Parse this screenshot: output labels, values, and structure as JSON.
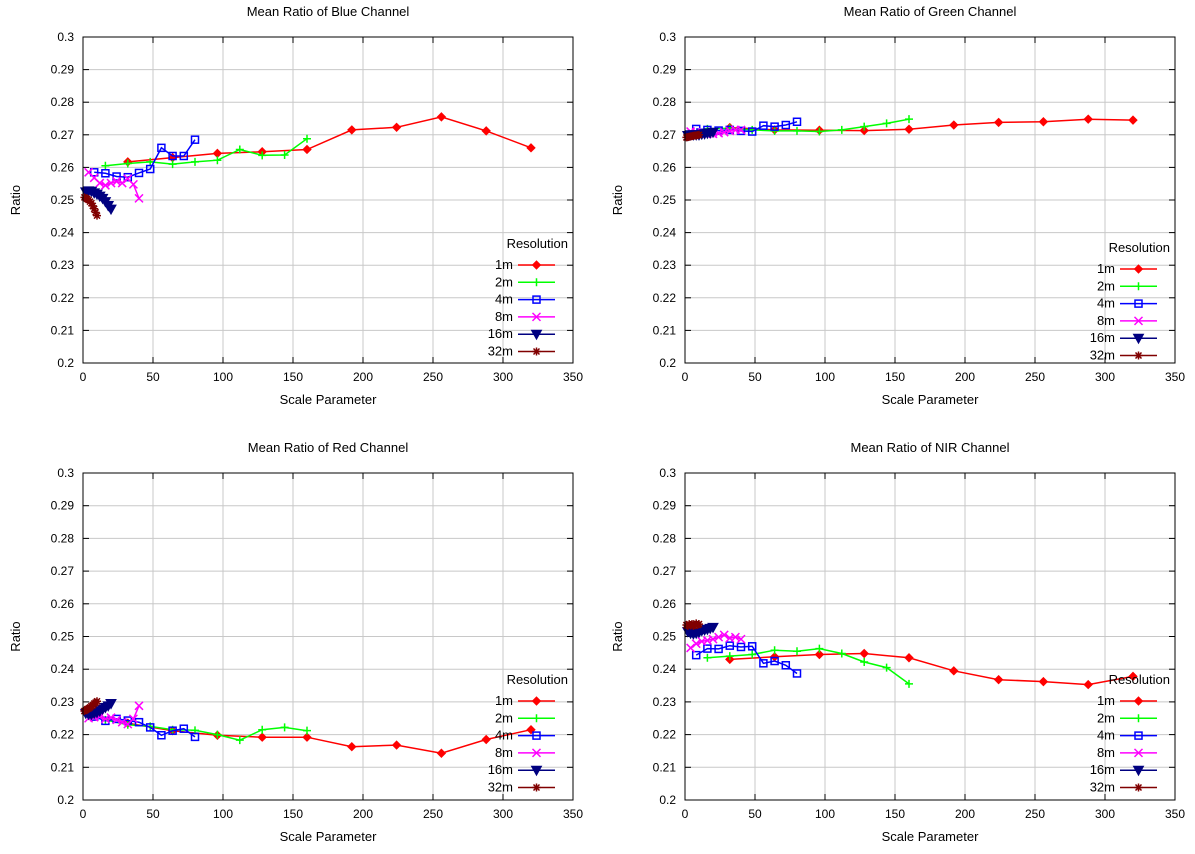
{
  "legend": {
    "title": "Resolution",
    "entries": [
      {
        "label": "1m",
        "color": "#ff0000",
        "marker": "diamond"
      },
      {
        "label": "2m",
        "color": "#00ff00",
        "marker": "plus"
      },
      {
        "label": "4m",
        "color": "#0000ff",
        "marker": "square"
      },
      {
        "label": "8m",
        "color": "#ff00ff",
        "marker": "cross"
      },
      {
        "label": "16m",
        "color": "#000080",
        "marker": "triangle-down"
      },
      {
        "label": "32m",
        "color": "#800000",
        "marker": "star"
      }
    ]
  },
  "chart_data": [
    {
      "type": "line",
      "title": "Mean Ratio of Blue Channel",
      "xlabel": "Scale Parameter",
      "ylabel": "Ratio",
      "xlim": [
        0,
        350
      ],
      "ylim": [
        0.2,
        0.3
      ],
      "xticks": [
        "0",
        "50",
        "100",
        "150",
        "200",
        "250",
        "300",
        "350"
      ],
      "yticks": [
        "0.2",
        "0.21",
        "0.22",
        "0.23",
        "0.24",
        "0.25",
        "0.26",
        "0.27",
        "0.28",
        "0.29",
        "0.3"
      ],
      "grid": true,
      "legend_position": "bottom-right",
      "series": [
        {
          "name": "1m",
          "x": [
            32,
            64,
            96,
            128,
            160,
            192,
            224,
            256,
            288,
            320
          ],
          "y": [
            0.2617,
            0.263,
            0.2643,
            0.2648,
            0.2655,
            0.2715,
            0.2723,
            0.2755,
            0.2712,
            0.266
          ]
        },
        {
          "name": "2m",
          "x": [
            16,
            32,
            48,
            64,
            80,
            96,
            112,
            128,
            144,
            160
          ],
          "y": [
            0.2605,
            0.2612,
            0.2617,
            0.261,
            0.2617,
            0.2622,
            0.2655,
            0.2637,
            0.2638,
            0.2688
          ]
        },
        {
          "name": "4m",
          "x": [
            8,
            16,
            24,
            32,
            40,
            48,
            56,
            64,
            72,
            80
          ],
          "y": [
            0.2585,
            0.2582,
            0.2572,
            0.257,
            0.2583,
            0.2595,
            0.266,
            0.2635,
            0.2635,
            0.2685
          ]
        },
        {
          "name": "8m",
          "x": [
            4,
            8,
            12,
            16,
            20,
            24,
            28,
            32,
            36,
            40
          ],
          "y": [
            0.2585,
            0.2568,
            0.2552,
            0.2545,
            0.2552,
            0.2557,
            0.2552,
            0.2565,
            0.2548,
            0.2505
          ]
        },
        {
          "name": "16m",
          "x": [
            2,
            4,
            6,
            8,
            10,
            12,
            14,
            16,
            18,
            20
          ],
          "y": [
            0.2525,
            0.2528,
            0.2527,
            0.2522,
            0.2518,
            0.2512,
            0.2505,
            0.2495,
            0.2483,
            0.2472
          ]
        },
        {
          "name": "32m",
          "x": [
            1,
            2,
            3,
            4,
            5,
            6,
            7,
            8,
            9,
            10
          ],
          "y": [
            0.2508,
            0.2505,
            0.2503,
            0.25,
            0.2495,
            0.249,
            0.2482,
            0.2473,
            0.2462,
            0.2452
          ]
        }
      ]
    },
    {
      "type": "line",
      "title": "Mean Ratio of Green Channel",
      "xlabel": "Scale Parameter",
      "ylabel": "Ratio",
      "xlim": [
        0,
        350
      ],
      "ylim": [
        0.2,
        0.3
      ],
      "xticks": [
        "0",
        "50",
        "100",
        "150",
        "200",
        "250",
        "300",
        "350"
      ],
      "yticks": [
        "0.2",
        "0.21",
        "0.22",
        "0.23",
        "0.24",
        "0.25",
        "0.26",
        "0.27",
        "0.28",
        "0.29",
        "0.3"
      ],
      "grid": true,
      "legend_position": "bottom-right",
      "series": [
        {
          "name": "1m",
          "x": [
            32,
            64,
            96,
            128,
            160,
            192,
            224,
            256,
            288,
            320
          ],
          "y": [
            0.2722,
            0.2715,
            0.2714,
            0.2713,
            0.2717,
            0.273,
            0.2738,
            0.274,
            0.2748,
            0.2745
          ]
        },
        {
          "name": "2m",
          "x": [
            16,
            32,
            48,
            64,
            80,
            96,
            112,
            128,
            144,
            160
          ],
          "y": [
            0.2718,
            0.272,
            0.2715,
            0.2712,
            0.2712,
            0.271,
            0.2715,
            0.2725,
            0.2735,
            0.2748
          ]
        },
        {
          "name": "4m",
          "x": [
            8,
            16,
            24,
            32,
            40,
            48,
            56,
            64,
            72,
            80
          ],
          "y": [
            0.2718,
            0.2715,
            0.2713,
            0.2715,
            0.2712,
            0.271,
            0.2728,
            0.2725,
            0.273,
            0.274
          ]
        },
        {
          "name": "8m",
          "x": [
            4,
            8,
            12,
            16,
            20,
            24,
            28,
            32,
            36,
            40
          ],
          "y": [
            0.271,
            0.2708,
            0.2705,
            0.2703,
            0.2703,
            0.2705,
            0.2708,
            0.2712,
            0.2715,
            0.2715
          ]
        },
        {
          "name": "16m",
          "x": [
            2,
            4,
            6,
            8,
            10,
            12,
            14,
            16,
            18,
            20
          ],
          "y": [
            0.2698,
            0.27,
            0.27,
            0.27,
            0.27,
            0.2702,
            0.2703,
            0.2705,
            0.2706,
            0.2708
          ]
        },
        {
          "name": "32m",
          "x": [
            1,
            2,
            3,
            4,
            5,
            6,
            7,
            8,
            9,
            10
          ],
          "y": [
            0.2692,
            0.2693,
            0.2694,
            0.2695,
            0.2696,
            0.2697,
            0.2698,
            0.2698,
            0.2699,
            0.27
          ]
        }
      ]
    },
    {
      "type": "line",
      "title": "Mean Ratio of Red Channel",
      "xlabel": "Scale Parameter",
      "ylabel": "Ratio",
      "xlim": [
        0,
        350
      ],
      "ylim": [
        0.2,
        0.3
      ],
      "xticks": [
        "0",
        "50",
        "100",
        "150",
        "200",
        "250",
        "300",
        "350"
      ],
      "yticks": [
        "0.2",
        "0.21",
        "0.22",
        "0.23",
        "0.24",
        "0.25",
        "0.26",
        "0.27",
        "0.28",
        "0.29",
        "0.3"
      ],
      "grid": true,
      "legend_position": "bottom-right",
      "series": [
        {
          "name": "1m",
          "x": [
            32,
            64,
            96,
            128,
            160,
            192,
            224,
            256,
            288,
            320
          ],
          "y": [
            0.2235,
            0.2212,
            0.2198,
            0.2192,
            0.2192,
            0.2163,
            0.2168,
            0.2143,
            0.2185,
            0.2215
          ]
        },
        {
          "name": "2m",
          "x": [
            16,
            32,
            48,
            64,
            80,
            96,
            112,
            128,
            144,
            160
          ],
          "y": [
            0.2245,
            0.223,
            0.2225,
            0.2215,
            0.2213,
            0.22,
            0.2183,
            0.2215,
            0.2222,
            0.2212
          ]
        },
        {
          "name": "4m",
          "x": [
            8,
            16,
            24,
            32,
            40,
            48,
            56,
            64,
            72,
            80
          ],
          "y": [
            0.2255,
            0.2242,
            0.2248,
            0.2243,
            0.2238,
            0.2222,
            0.2198,
            0.2212,
            0.2218,
            0.2193
          ]
        },
        {
          "name": "8m",
          "x": [
            4,
            8,
            12,
            16,
            20,
            24,
            28,
            32,
            36,
            40
          ],
          "y": [
            0.225,
            0.2253,
            0.2255,
            0.2248,
            0.2252,
            0.2245,
            0.2238,
            0.2232,
            0.2248,
            0.2288
          ]
        },
        {
          "name": "16m",
          "x": [
            2,
            4,
            6,
            8,
            10,
            12,
            14,
            16,
            18,
            20
          ],
          "y": [
            0.2265,
            0.2262,
            0.2262,
            0.2265,
            0.2268,
            0.2272,
            0.2278,
            0.2283,
            0.2288,
            0.2295
          ]
        },
        {
          "name": "32m",
          "x": [
            1,
            2,
            3,
            4,
            5,
            6,
            7,
            8,
            9,
            10
          ],
          "y": [
            0.2272,
            0.2275,
            0.2278,
            0.228,
            0.2283,
            0.2287,
            0.229,
            0.2295,
            0.2298,
            0.2302
          ]
        }
      ]
    },
    {
      "type": "line",
      "title": "Mean Ratio of NIR Channel",
      "xlabel": "Scale Parameter",
      "ylabel": "Ratio",
      "xlim": [
        0,
        350
      ],
      "ylim": [
        0.2,
        0.3
      ],
      "xticks": [
        "0",
        "50",
        "100",
        "150",
        "200",
        "250",
        "300",
        "350"
      ],
      "yticks": [
        "0.2",
        "0.21",
        "0.22",
        "0.23",
        "0.24",
        "0.25",
        "0.26",
        "0.27",
        "0.28",
        "0.29",
        "0.3"
      ],
      "grid": true,
      "legend_position": "bottom-right",
      "series": [
        {
          "name": "1m",
          "x": [
            32,
            64,
            96,
            128,
            160,
            192,
            224,
            256,
            288,
            320
          ],
          "y": [
            0.243,
            0.2438,
            0.2445,
            0.2448,
            0.2435,
            0.2395,
            0.2368,
            0.2362,
            0.2353,
            0.2378
          ]
        },
        {
          "name": "2m",
          "x": [
            16,
            32,
            48,
            64,
            80,
            96,
            112,
            128,
            144,
            160
          ],
          "y": [
            0.2435,
            0.244,
            0.2445,
            0.2458,
            0.2455,
            0.2463,
            0.2448,
            0.2422,
            0.2405,
            0.2355
          ]
        },
        {
          "name": "4m",
          "x": [
            8,
            16,
            24,
            32,
            40,
            48,
            56,
            64,
            72,
            80
          ],
          "y": [
            0.2443,
            0.2463,
            0.2462,
            0.2472,
            0.2468,
            0.247,
            0.2418,
            0.2425,
            0.2412,
            0.2387
          ]
        },
        {
          "name": "8m",
          "x": [
            4,
            8,
            12,
            16,
            20,
            24,
            28,
            32,
            36,
            40
          ],
          "y": [
            0.2465,
            0.2478,
            0.2485,
            0.2488,
            0.2492,
            0.2498,
            0.2505,
            0.2495,
            0.2498,
            0.2492
          ]
        },
        {
          "name": "16m",
          "x": [
            2,
            4,
            6,
            8,
            10,
            12,
            14,
            16,
            18,
            20
          ],
          "y": [
            0.2515,
            0.251,
            0.2508,
            0.251,
            0.2513,
            0.2518,
            0.252,
            0.2522,
            0.2525,
            0.2528
          ]
        },
        {
          "name": "32m",
          "x": [
            1,
            2,
            3,
            4,
            5,
            6,
            7,
            8,
            9,
            10
          ],
          "y": [
            0.2535,
            0.2532,
            0.2538,
            0.2535,
            0.2538,
            0.2532,
            0.2535,
            0.254,
            0.2535,
            0.2538
          ]
        }
      ]
    }
  ]
}
